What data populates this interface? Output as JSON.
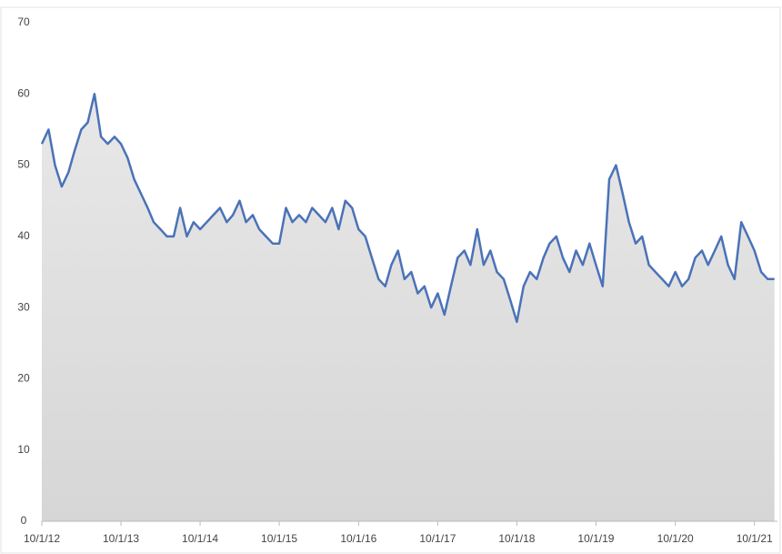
{
  "chart_data": {
    "type": "area",
    "x": [
      "2012-10-01",
      "2012-11-01",
      "2012-12-01",
      "2013-01-01",
      "2013-02-01",
      "2013-03-01",
      "2013-04-01",
      "2013-05-01",
      "2013-06-01",
      "2013-07-01",
      "2013-08-01",
      "2013-09-01",
      "2013-10-01",
      "2013-11-01",
      "2013-12-01",
      "2014-01-01",
      "2014-02-01",
      "2014-03-01",
      "2014-04-01",
      "2014-05-01",
      "2014-06-01",
      "2014-07-01",
      "2014-08-01",
      "2014-09-01",
      "2014-10-01",
      "2014-11-01",
      "2014-12-01",
      "2015-01-01",
      "2015-02-01",
      "2015-03-01",
      "2015-04-01",
      "2015-05-01",
      "2015-06-01",
      "2015-07-01",
      "2015-08-01",
      "2015-09-01",
      "2015-10-01",
      "2015-11-01",
      "2015-12-01",
      "2016-01-01",
      "2016-02-01",
      "2016-03-01",
      "2016-04-01",
      "2016-05-01",
      "2016-06-01",
      "2016-07-01",
      "2016-08-01",
      "2016-09-01",
      "2016-10-01",
      "2016-11-01",
      "2016-12-01",
      "2017-01-01",
      "2017-02-01",
      "2017-03-01",
      "2017-04-01",
      "2017-05-01",
      "2017-06-01",
      "2017-07-01",
      "2017-08-01",
      "2017-09-01",
      "2017-10-01",
      "2017-11-01",
      "2017-12-01",
      "2018-01-01",
      "2018-02-01",
      "2018-03-01",
      "2018-04-01",
      "2018-05-01",
      "2018-06-01",
      "2018-07-01",
      "2018-08-01",
      "2018-09-01",
      "2018-10-01",
      "2018-11-01",
      "2018-12-01",
      "2019-01-01",
      "2019-02-01",
      "2019-03-01",
      "2019-04-01",
      "2019-05-01",
      "2019-06-01",
      "2019-07-01",
      "2019-08-01",
      "2019-09-01",
      "2019-10-01",
      "2019-11-01",
      "2019-12-01",
      "2020-01-01",
      "2020-02-01",
      "2020-03-01",
      "2020-04-01",
      "2020-05-01",
      "2020-06-01",
      "2020-07-01",
      "2020-08-01",
      "2020-09-01",
      "2020-10-01",
      "2020-11-01",
      "2020-12-01",
      "2021-01-01",
      "2021-02-01",
      "2021-03-01",
      "2021-04-01",
      "2021-05-01",
      "2021-06-01",
      "2021-07-01",
      "2021-08-01",
      "2021-09-01",
      "2021-10-01",
      "2021-11-01",
      "2021-12-01",
      "2022-01-01"
    ],
    "values": [
      53,
      55,
      50,
      47,
      49,
      52,
      55,
      56,
      60,
      54,
      53,
      54,
      53,
      51,
      48,
      46,
      44,
      42,
      41,
      40,
      40,
      44,
      40,
      42,
      41,
      42,
      43,
      44,
      42,
      43,
      45,
      42,
      43,
      41,
      40,
      39,
      39,
      44,
      42,
      43,
      42,
      44,
      43,
      42,
      44,
      41,
      45,
      44,
      41,
      40,
      37,
      34,
      33,
      36,
      38,
      34,
      35,
      32,
      33,
      30,
      32,
      29,
      33,
      37,
      38,
      36,
      41,
      36,
      38,
      35,
      34,
      31,
      28,
      33,
      35,
      34,
      37,
      39,
      40,
      37,
      35,
      38,
      36,
      39,
      36,
      33,
      48,
      50,
      46,
      42,
      39,
      40,
      36,
      35,
      34,
      33,
      35,
      33,
      34,
      37,
      38,
      36,
      38,
      40,
      36,
      34,
      42,
      40,
      38,
      35,
      34,
      34
    ],
    "color": "#4a72b8",
    "fill": "#dddddd",
    "xlim": [
      "2012-10-01",
      "2022-01-15"
    ],
    "xticks": [
      {
        "value": "2012-10-01",
        "label": "10/1/12"
      },
      {
        "value": "2013-10-01",
        "label": "10/1/13"
      },
      {
        "value": "2014-10-01",
        "label": "10/1/14"
      },
      {
        "value": "2015-10-01",
        "label": "10/1/15"
      },
      {
        "value": "2016-10-01",
        "label": "10/1/16"
      },
      {
        "value": "2017-10-01",
        "label": "10/1/17"
      },
      {
        "value": "2018-10-01",
        "label": "10/1/18"
      },
      {
        "value": "2019-10-01",
        "label": "10/1/19"
      },
      {
        "value": "2020-10-01",
        "label": "10/1/20"
      },
      {
        "value": "2021-10-01",
        "label": "10/1/21"
      }
    ],
    "ylim": [
      0,
      70
    ],
    "yticks": [
      0,
      10,
      20,
      30,
      40,
      50,
      60,
      70
    ],
    "grid": false
  }
}
